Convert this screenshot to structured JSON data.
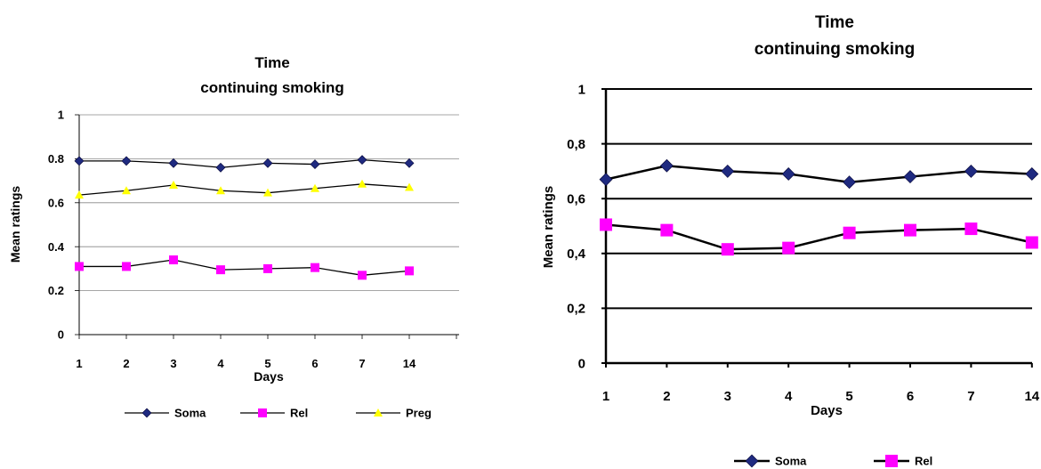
{
  "chart_data": [
    {
      "type": "line",
      "title": [
        "Time",
        "continuing smoking"
      ],
      "xlabel": "Days",
      "ylabel": "Mean ratings",
      "categories": [
        "1",
        "2",
        "3",
        "4",
        "5",
        "6",
        "7",
        "14"
      ],
      "ylim": [
        0,
        1
      ],
      "yticks": [
        "0",
        "0.2",
        "0.4",
        "0.6",
        "0.8",
        "1"
      ],
      "grid": true,
      "legend": "bottom",
      "series": [
        {
          "name": "Soma",
          "marker": "diamond",
          "color": "#1f2a80",
          "values": [
            0.79,
            0.79,
            0.78,
            0.76,
            0.78,
            0.775,
            0.795,
            0.78
          ]
        },
        {
          "name": "Rel",
          "marker": "square",
          "color": "#ff00ff",
          "values": [
            0.31,
            0.31,
            0.34,
            0.295,
            0.3,
            0.305,
            0.27,
            0.29
          ]
        },
        {
          "name": "Preg",
          "marker": "triangle",
          "color": "#ffff00",
          "values": [
            0.635,
            0.655,
            0.68,
            0.655,
            0.645,
            0.665,
            0.685,
            0.67
          ]
        }
      ]
    },
    {
      "type": "line",
      "title": [
        "Time",
        "continuing smoking"
      ],
      "xlabel": "Days",
      "ylabel": "Mean ratings",
      "categories": [
        "1",
        "2",
        "3",
        "4",
        "5",
        "6",
        "7",
        "14"
      ],
      "ylim": [
        0,
        1
      ],
      "yticks": [
        "0",
        "0,2",
        "0,4",
        "0,6",
        "0,8",
        "1"
      ],
      "grid": true,
      "legend": "bottom-right",
      "series": [
        {
          "name": "Soma",
          "marker": "diamond",
          "color": "#1f2a80",
          "values": [
            0.67,
            0.72,
            0.7,
            0.69,
            0.66,
            0.68,
            0.7,
            0.69
          ]
        },
        {
          "name": "Rel",
          "marker": "square",
          "color": "#ff00ff",
          "values": [
            0.505,
            0.485,
            0.415,
            0.42,
            0.475,
            0.485,
            0.49,
            0.44
          ]
        }
      ]
    }
  ]
}
